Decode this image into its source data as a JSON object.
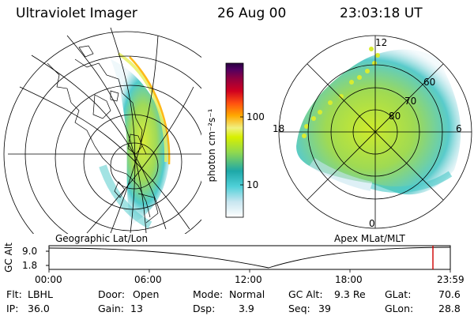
{
  "header": {
    "instrument": "Ultraviolet Imager",
    "date": "26 Aug 00",
    "time": "23:03:18 UT"
  },
  "colorbar": {
    "unit_label": "photon cm⁻²s⁻¹",
    "ticks": [
      "100",
      "10"
    ],
    "colors": [
      "#ffffff",
      "#c8e6f0",
      "#4fd0d8",
      "#1ea8a8",
      "#8fd850",
      "#d8f000",
      "#f0f080",
      "#ffa800",
      "#ff5010",
      "#d00020",
      "#900040",
      "#500060",
      "#280040"
    ]
  },
  "maps": {
    "left_label": "Geographic Lat/Lon",
    "right_label": "Apex MLat/MLT",
    "right_ring_labels": [
      "60",
      "70",
      "80"
    ],
    "right_mlt_labels": [
      "12",
      "18",
      "6",
      "0"
    ]
  },
  "altitude_panel": {
    "axis_label": "GC Alt",
    "y_ticks": [
      "9.0",
      "1.8"
    ],
    "x_ticks": [
      "00:00",
      "06:00",
      "12:00",
      "18:00",
      "23:59"
    ]
  },
  "status": {
    "row1": [
      {
        "key": "Flt:",
        "value": "LBHL"
      },
      {
        "key": "Door:",
        "value": "Open"
      },
      {
        "key": "Mode:",
        "value": "Normal"
      },
      {
        "key": "GC Alt:",
        "value": "9.3 Re"
      },
      {
        "key": "GLat:",
        "value": "70.6"
      }
    ],
    "row2": [
      {
        "key": "IP:",
        "value": "36.0"
      },
      {
        "key": "Gain:",
        "value": "13"
      },
      {
        "key": "Dsp:",
        "value": "3.9"
      },
      {
        "key": "Seq:",
        "value": "39"
      },
      {
        "key": "GLon:",
        "value": "28.8"
      }
    ]
  }
}
